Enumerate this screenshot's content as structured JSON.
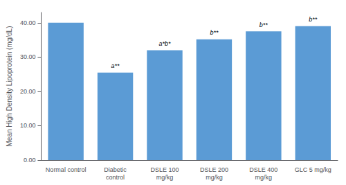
{
  "chart_data": {
    "type": "bar",
    "categories": [
      "Normal control",
      "Diabetic\ncontrol",
      "DSLE 100\nmg/kg",
      "DSLE 200\nmg/kg",
      "DSLE 400\nmg/kg",
      "GLC 5 mg/kg"
    ],
    "values": [
      40.0,
      25.5,
      32.0,
      35.2,
      37.5,
      39.0
    ],
    "color": "#5B9BD5",
    "ylabel": "Mean High Density Lipoprotein (mg/dL)",
    "ylim": [
      0,
      43
    ],
    "yticks": [
      {
        "value": 0,
        "label": "0.00"
      },
      {
        "value": 10,
        "label": "10.00"
      },
      {
        "value": 20,
        "label": "20.00"
      },
      {
        "value": 30,
        "label": "30.00"
      },
      {
        "value": 40,
        "label": "40.00"
      }
    ],
    "annotations": [
      null,
      "a**",
      "a*b*",
      "b**",
      "b**",
      "b**"
    ],
    "grid": false
  }
}
